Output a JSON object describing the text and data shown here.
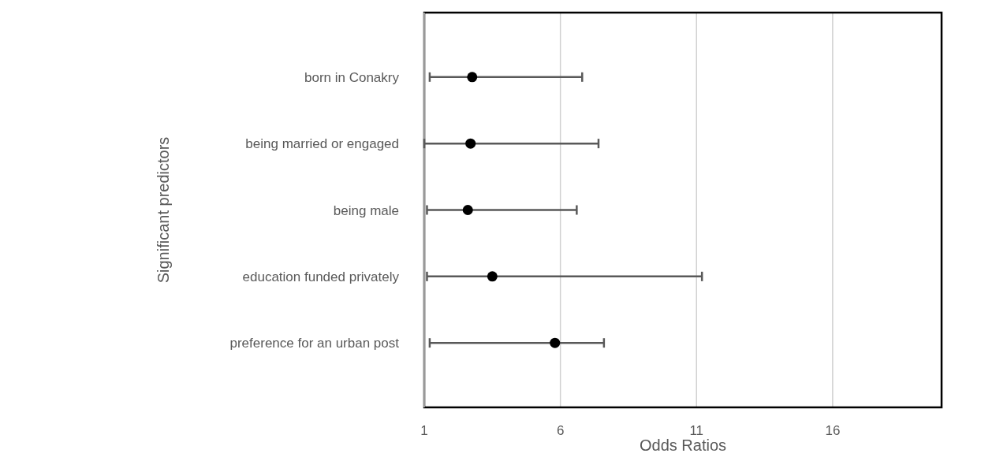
{
  "chart_data": {
    "type": "scatter",
    "orientation": "horizontal",
    "xlabel": "Odds Ratios",
    "ylabel": "Significant predictors",
    "categories": [
      "born in Conakry",
      "being married or engaged",
      "being male",
      "education funded privately",
      "preference for an urban post"
    ],
    "values": [
      2.76,
      2.7,
      2.6,
      3.5,
      5.8
    ],
    "errors": [
      [
        1.2,
        6.8
      ],
      [
        1.0,
        7.4
      ],
      [
        1.1,
        6.6
      ],
      [
        1.1,
        11.2
      ],
      [
        1.2,
        7.6
      ]
    ],
    "color": "#000000",
    "marker": "circle",
    "xlim": [
      1,
      20
    ],
    "xticks": [
      1,
      6,
      11,
      16
    ],
    "grid": "x"
  }
}
